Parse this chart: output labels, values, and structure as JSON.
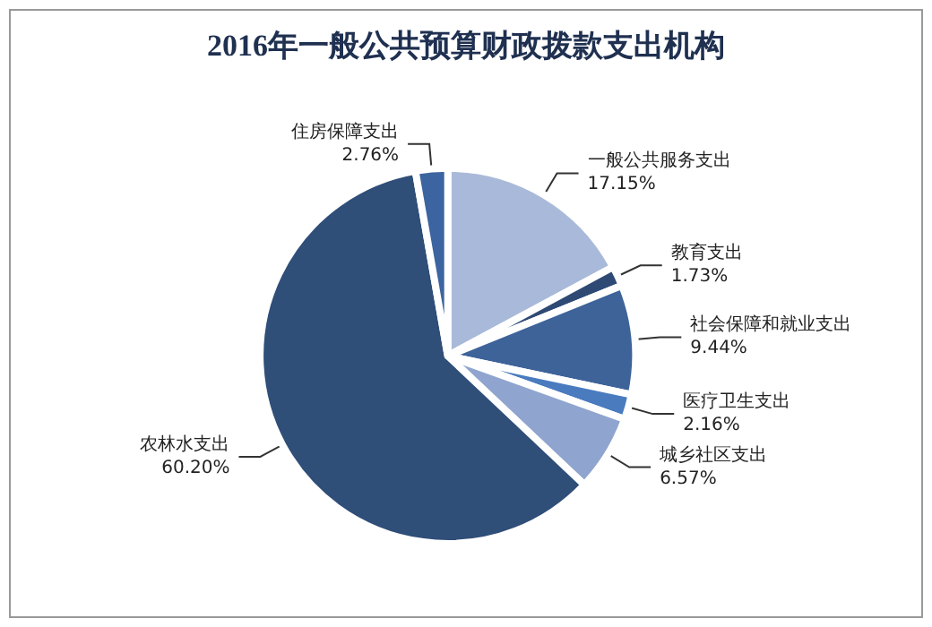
{
  "chart_data": {
    "type": "pie",
    "title": "2016年一般公共预算财政拨款支出机构",
    "categories": [
      "一般公共服务支出",
      "教育支出",
      "社会保障和就业支出",
      "医疗卫生支出",
      "城乡社区支出",
      "农林水支出",
      "住房保障支出"
    ],
    "values": [
      17.15,
      1.73,
      9.44,
      2.16,
      6.57,
      60.2,
      2.76
    ],
    "value_labels": [
      "17.15%",
      "1.73%",
      "9.44%",
      "2.16%",
      "6.57%",
      "60.20%",
      "2.76%"
    ],
    "colors": [
      "#a9b9d9",
      "#2e4a74",
      "#3d6399",
      "#4a7bbf",
      "#8fa5cf",
      "#2f4e78",
      "#3c64a0"
    ],
    "legend": false
  }
}
